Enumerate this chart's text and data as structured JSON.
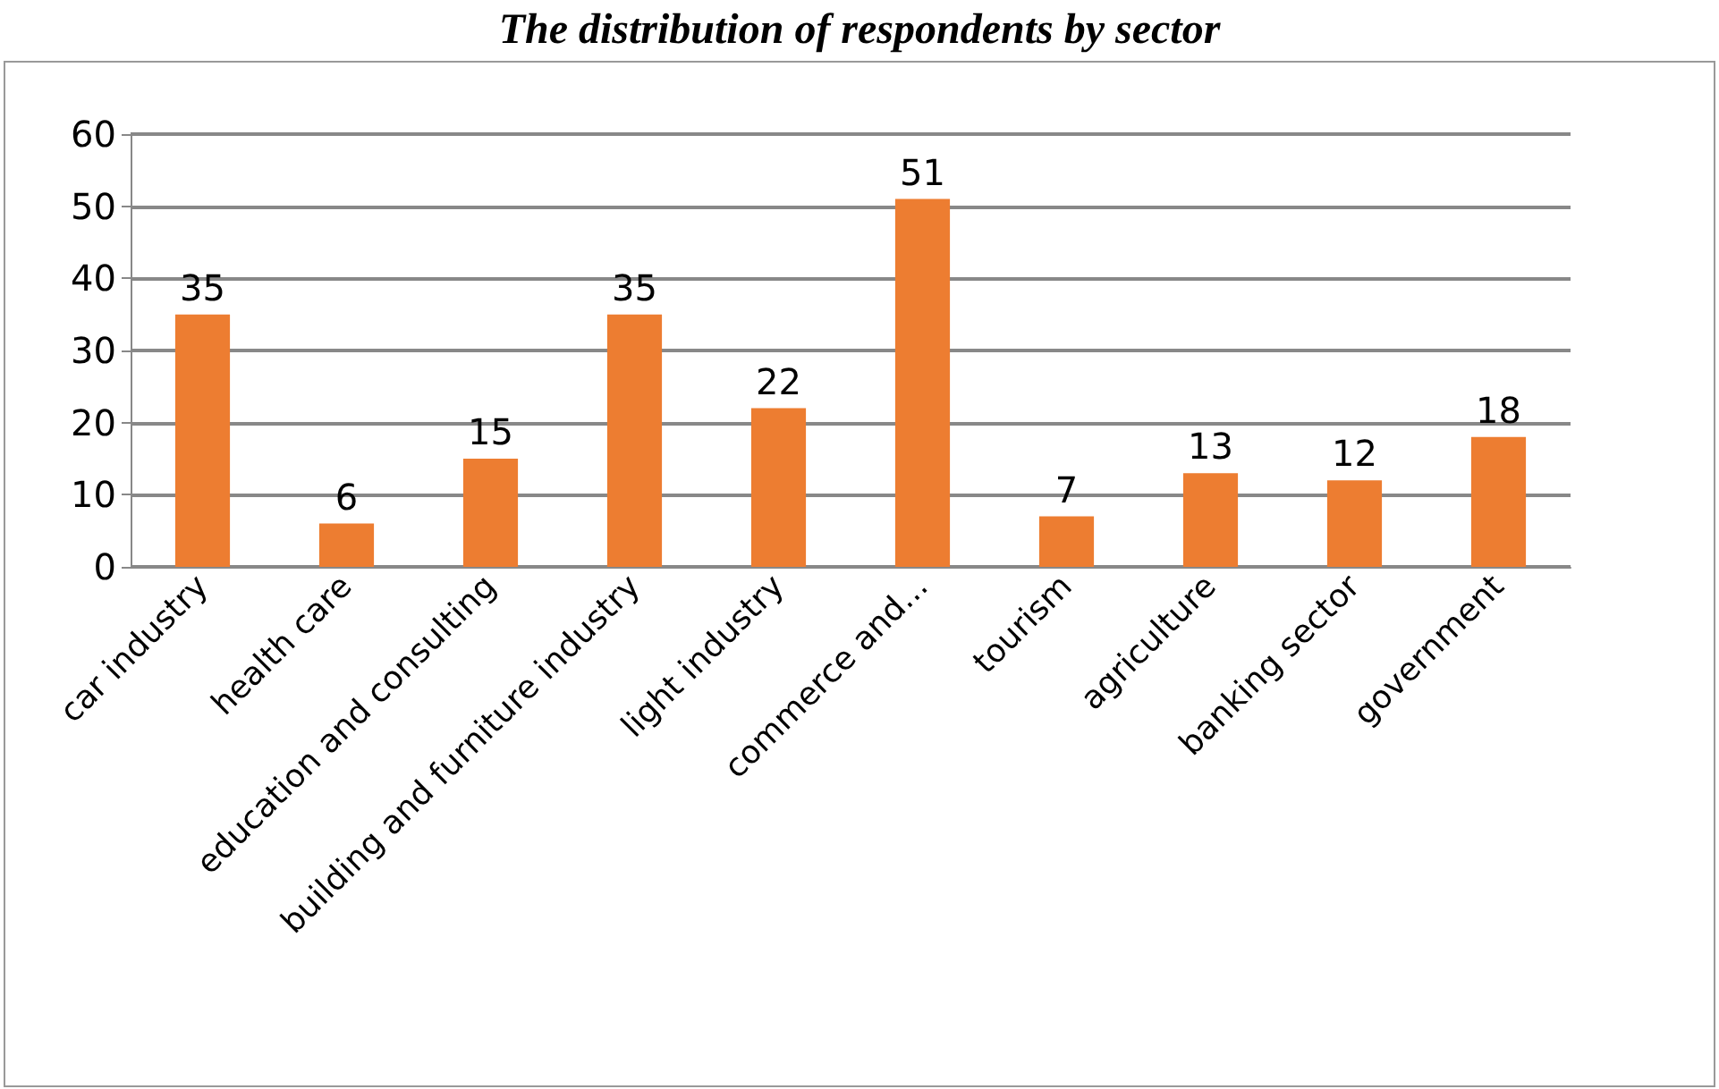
{
  "chart_data": {
    "type": "bar",
    "title": "The distribution of respondents by sector",
    "categories": [
      "car industry",
      "health care",
      "education and consulting",
      "building and furniture industry",
      "light industry",
      "commerce and...",
      "tourism",
      "agriculture",
      "banking sector",
      "government"
    ],
    "values": [
      35,
      6,
      15,
      35,
      22,
      51,
      7,
      13,
      12,
      18
    ],
    "color": "#ed7d31",
    "ylim": [
      0,
      60
    ],
    "yticks": [
      0,
      10,
      20,
      30,
      40,
      50,
      60
    ],
    "grid": "y",
    "data_labels": true
  }
}
